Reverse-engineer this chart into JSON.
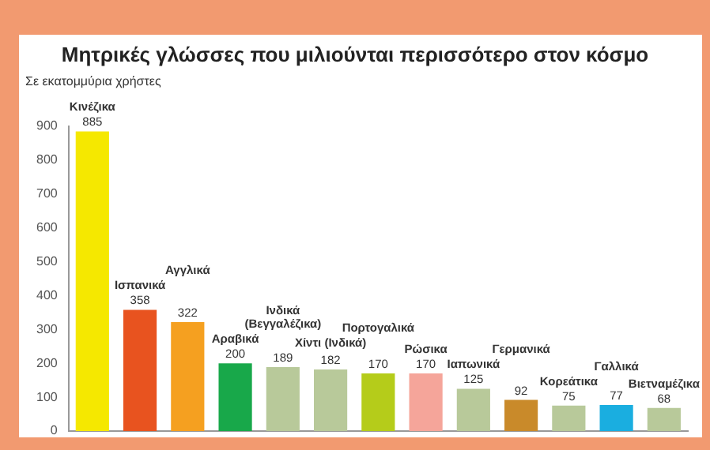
{
  "chart_data": {
    "type": "bar",
    "title": "Μητρικές γλώσσες που μιλιούνται περισσότερο στον κόσμο",
    "ylabel": "Σε εκατομμύρια χρήστες",
    "categories": [
      "Κινέζικα",
      "Ισπανικά",
      "Αγγλικά",
      "Αραβικά",
      "Ινδικά (Βεγγαλέζικα)",
      "Χίντι (Ινδικά)",
      "Πορτογαλικά",
      "Ρώσικα",
      "Ιαπωνικά",
      "Γερμανικά",
      "Κορεάτικα",
      "Γαλλικά",
      "Βιετναμέζικα"
    ],
    "values": [
      885,
      358,
      322,
      200,
      189,
      182,
      170,
      170,
      125,
      92,
      75,
      77,
      68
    ],
    "colors": [
      "#f5e800",
      "#e8531f",
      "#f5a020",
      "#18a84a",
      "#b8c99a",
      "#b8c99a",
      "#b5cc1a",
      "#f5a59a",
      "#b8c99a",
      "#c98a2a",
      "#b8c99a",
      "#1aaee0",
      "#b8c99a"
    ],
    "ylim": [
      0,
      900
    ],
    "yticks": [
      0,
      100,
      200,
      300,
      400,
      500,
      600,
      700,
      800,
      900
    ],
    "grid": false,
    "legend": false,
    "tick_labels": "y",
    "data_labels": true
  }
}
